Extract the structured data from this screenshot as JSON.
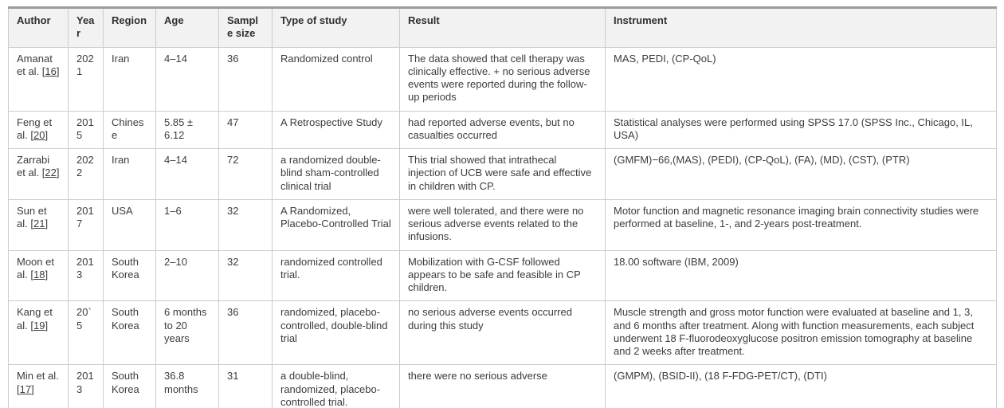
{
  "table": {
    "columns": [
      {
        "key": "author",
        "label": "Author"
      },
      {
        "key": "year",
        "label": "Year"
      },
      {
        "key": "region",
        "label": "Region"
      },
      {
        "key": "age",
        "label": "Age"
      },
      {
        "key": "sample_size",
        "label": "Sample size"
      },
      {
        "key": "type_of_study",
        "label": "Type of study"
      },
      {
        "key": "result",
        "label": "Result"
      },
      {
        "key": "instrument",
        "label": "Instrument"
      }
    ],
    "citation_bracket_open": "[",
    "citation_bracket_close": "]",
    "rows": [
      {
        "author_name": "Amanat et al.",
        "author_ref": "16",
        "year": "2021",
        "region": "Iran",
        "age": "4–14",
        "sample_size": "36",
        "type_of_study": "Randomized control",
        "result": "The data showed that cell therapy was clinically effective. + no serious adverse events were reported during the follow-up periods",
        "instrument": "MAS, PEDI, (CP-QoL)"
      },
      {
        "author_name": "Feng et al.",
        "author_ref": "20",
        "year": "2015",
        "region": "Chinese",
        "age": "5.85 ± 6.12",
        "sample_size": "47",
        "type_of_study": "A Retrospective Study",
        "result": "had reported adverse events, but no casualties occurred",
        "instrument": "Statistical analyses were performed using SPSS 17.0 (SPSS Inc., Chicago, IL, USA)"
      },
      {
        "author_name": "Zarrabi et al.",
        "author_ref": "22",
        "year": "2022",
        "region": "Iran",
        "age": "4–14",
        "sample_size": "72",
        "type_of_study": "a randomized double-blind sham-controlled clinical trial",
        "result": "This trial showed that intrathecal injection of UCB were safe and effective in children with CP.",
        "instrument": "(GMFM)−66,(MAS), (PEDI), (CP-QoL), (FA), (MD), (CST), (PTR)"
      },
      {
        "author_name": "Sun et al.",
        "author_ref": "21",
        "year": "2017",
        "region": "USA",
        "age": "1–6",
        "sample_size": "32",
        "type_of_study": "A Randomized, Placebo-Controlled Trial",
        "result": "were well tolerated, and there were no serious adverse events related to the infusions.",
        "instrument": "Motor function and magnetic resonance imaging brain connectivity studies were performed at baseline, 1-, and 2-years post-treatment."
      },
      {
        "author_name": "Moon et al.",
        "author_ref": "18",
        "year": "2013",
        "region": "South Korea",
        "age": "2–10",
        "sample_size": "32",
        "type_of_study": "randomized controlled trial.",
        "result": "Mobilization with G-CSF followed appears to be safe and feasible in CP children.",
        "instrument": "18.00 software (IBM, 2009)"
      },
      {
        "author_name": "Kang et al.",
        "author_ref": "19",
        "year": "20`5",
        "region": "South Korea",
        "age": "6 months to 20 years",
        "sample_size": "36",
        "type_of_study": "randomized, placebo-controlled, double-blind trial",
        "result": "no serious adverse events occurred during this study",
        "instrument": "Muscle strength and gross motor function were evaluated at baseline and 1, 3, and 6 months after treatment. Along with function measurements, each subject underwent 18 F-fluorodeoxyglucose positron emission tomography at baseline and 2 weeks after treatment."
      },
      {
        "author_name": "Min et al.",
        "author_ref": "17",
        "year": "2013",
        "region": "South Korea",
        "age": "36.8 months",
        "sample_size": "31",
        "type_of_study": "a double-blind, randomized, placebo-controlled trial.",
        "result": "there were no serious adverse",
        "instrument": "(GMPM), (BSID-II), (18 F-FDG-PET/CT), (DTI)"
      }
    ]
  },
  "colors": {
    "header_background": "#f2f2f2",
    "cell_border": "#cccccc",
    "outer_rule": "#9b9b9b",
    "text": "#3c3c3c",
    "header_text": "#303030",
    "link_text": "#3c3c3c"
  }
}
